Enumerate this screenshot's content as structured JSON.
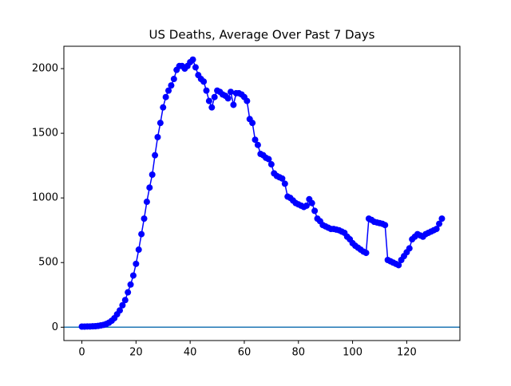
{
  "chart_data": {
    "type": "line",
    "title": "US Deaths, Average Over Past 7 Days",
    "x": [
      0,
      1,
      2,
      3,
      4,
      5,
      6,
      7,
      8,
      9,
      10,
      11,
      12,
      13,
      14,
      15,
      16,
      17,
      18,
      19,
      20,
      21,
      22,
      23,
      24,
      25,
      26,
      27,
      28,
      29,
      30,
      31,
      32,
      33,
      34,
      35,
      36,
      37,
      38,
      39,
      40,
      41,
      42,
      43,
      44,
      45,
      46,
      47,
      48,
      49,
      50,
      51,
      52,
      53,
      54,
      55,
      56,
      57,
      58,
      59,
      60,
      61,
      62,
      63,
      64,
      65,
      66,
      67,
      68,
      69,
      70,
      71,
      72,
      73,
      74,
      75,
      76,
      77,
      78,
      79,
      80,
      81,
      82,
      83,
      84,
      85,
      86,
      87,
      88,
      89,
      90,
      91,
      92,
      93,
      94,
      95,
      96,
      97,
      98,
      99,
      100,
      101,
      102,
      103,
      104,
      105,
      106,
      107,
      108,
      109,
      110,
      111,
      112,
      113,
      114,
      115,
      116,
      117,
      118,
      119,
      120,
      121,
      122,
      123,
      124,
      125,
      126,
      127,
      128,
      129,
      130,
      131,
      132,
      133
    ],
    "series": [
      {
        "color": "#0000ff",
        "values": [
          5,
          5,
          6,
          6,
          7,
          8,
          10,
          14,
          18,
          25,
          35,
          50,
          70,
          100,
          130,
          170,
          210,
          270,
          330,
          400,
          490,
          600,
          720,
          840,
          970,
          1080,
          1180,
          1330,
          1470,
          1580,
          1700,
          1780,
          1830,
          1870,
          1920,
          1990,
          2020,
          2020,
          2000,
          2020,
          2050,
          2070,
          2010,
          1950,
          1920,
          1900,
          1830,
          1750,
          1700,
          1780,
          1830,
          1820,
          1800,
          1790,
          1770,
          1820,
          1720,
          1810,
          1810,
          1800,
          1780,
          1750,
          1610,
          1580,
          1450,
          1410,
          1340,
          1330,
          1310,
          1300,
          1260,
          1190,
          1170,
          1160,
          1150,
          1110,
          1010,
          1000,
          980,
          960,
          950,
          940,
          930,
          940,
          990,
          960,
          900,
          840,
          820,
          790,
          780,
          770,
          760,
          760,
          755,
          750,
          740,
          730,
          700,
          680,
          650,
          630,
          615,
          600,
          585,
          575,
          840,
          830,
          815,
          810,
          805,
          800,
          790,
          520,
          510,
          500,
          490,
          480,
          520,
          550,
          580,
          610,
          680,
          700,
          720,
          710,
          700,
          720,
          730,
          740,
          750,
          760,
          800,
          840
        ]
      }
    ],
    "hline": {
      "value": 0,
      "color": "#1f77b4"
    },
    "xlim": [
      -6.65,
      139.65
    ],
    "xticks": [
      0,
      20,
      40,
      60,
      80,
      100,
      120
    ],
    "ylim": [
      -103,
      2173
    ],
    "yticks": [
      0,
      500,
      1000,
      1500,
      2000
    ]
  }
}
